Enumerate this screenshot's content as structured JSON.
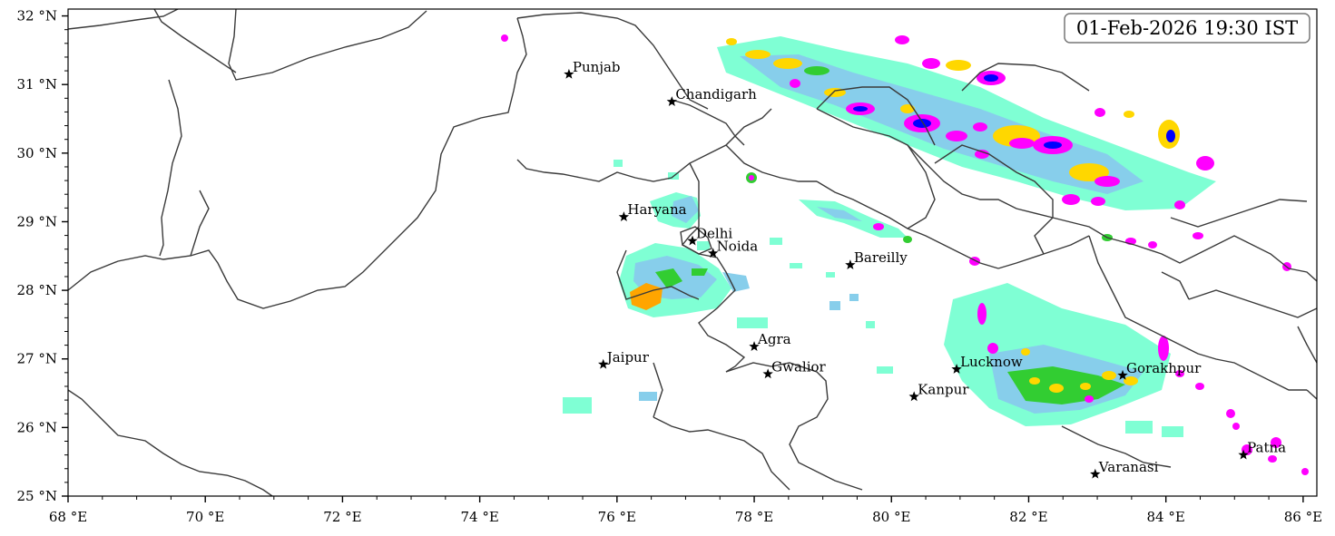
{
  "timestamp": "01-Feb-2026 19:30 IST",
  "x_axis": {
    "range": [
      68,
      86.2
    ],
    "ticks": [
      {
        "value": 68,
        "label": "68 °E"
      },
      {
        "value": 70,
        "label": "70 °E"
      },
      {
        "value": 72,
        "label": "72 °E"
      },
      {
        "value": 74,
        "label": "74 °E"
      },
      {
        "value": 76,
        "label": "76 °E"
      },
      {
        "value": 78,
        "label": "78 °E"
      },
      {
        "value": 80,
        "label": "80 °E"
      },
      {
        "value": 82,
        "label": "82 °E"
      },
      {
        "value": 84,
        "label": "84 °E"
      },
      {
        "value": 86,
        "label": "86 °E"
      }
    ]
  },
  "y_axis": {
    "range": [
      25,
      32.1
    ],
    "ticks": [
      {
        "value": 25,
        "label": "25 °N"
      },
      {
        "value": 26,
        "label": "26 °N"
      },
      {
        "value": 27,
        "label": "27 °N"
      },
      {
        "value": 28,
        "label": "28 °N"
      },
      {
        "value": 29,
        "label": "29 °N"
      },
      {
        "value": 30,
        "label": "30 °N"
      },
      {
        "value": 31,
        "label": "31 °N"
      },
      {
        "value": 32,
        "label": "32 °N"
      }
    ]
  },
  "cities": [
    {
      "name": "Punjab",
      "lon": 75.3,
      "lat": 31.15
    },
    {
      "name": "Chandigarh",
      "lon": 76.8,
      "lat": 30.75
    },
    {
      "name": "Haryana",
      "lon": 76.1,
      "lat": 29.07
    },
    {
      "name": "Delhi",
      "lon": 77.1,
      "lat": 28.72
    },
    {
      "name": "Noida",
      "lon": 77.4,
      "lat": 28.54
    },
    {
      "name": "Bareilly",
      "lon": 79.4,
      "lat": 28.37
    },
    {
      "name": "Agra",
      "lon": 78.0,
      "lat": 27.18
    },
    {
      "name": "Jaipur",
      "lon": 75.8,
      "lat": 26.92
    },
    {
      "name": "Gwalior",
      "lon": 78.2,
      "lat": 26.78
    },
    {
      "name": "Lucknow",
      "lon": 80.95,
      "lat": 26.85
    },
    {
      "name": "Gorakhpur",
      "lon": 83.37,
      "lat": 26.76
    },
    {
      "name": "Kanpur",
      "lon": 80.33,
      "lat": 26.45
    },
    {
      "name": "Varanasi",
      "lon": 82.97,
      "lat": 25.32
    },
    {
      "name": "Patna",
      "lon": 85.13,
      "lat": 25.6
    }
  ],
  "colors": {
    "light": "#7fffd4",
    "light_blue": "#87ceeb",
    "moderate": "#32cd32",
    "heavy": "#ffd700",
    "very_heavy": "#ffa500",
    "intense": "#ff00ff",
    "extreme": "#0000ff",
    "border": "#333333"
  }
}
